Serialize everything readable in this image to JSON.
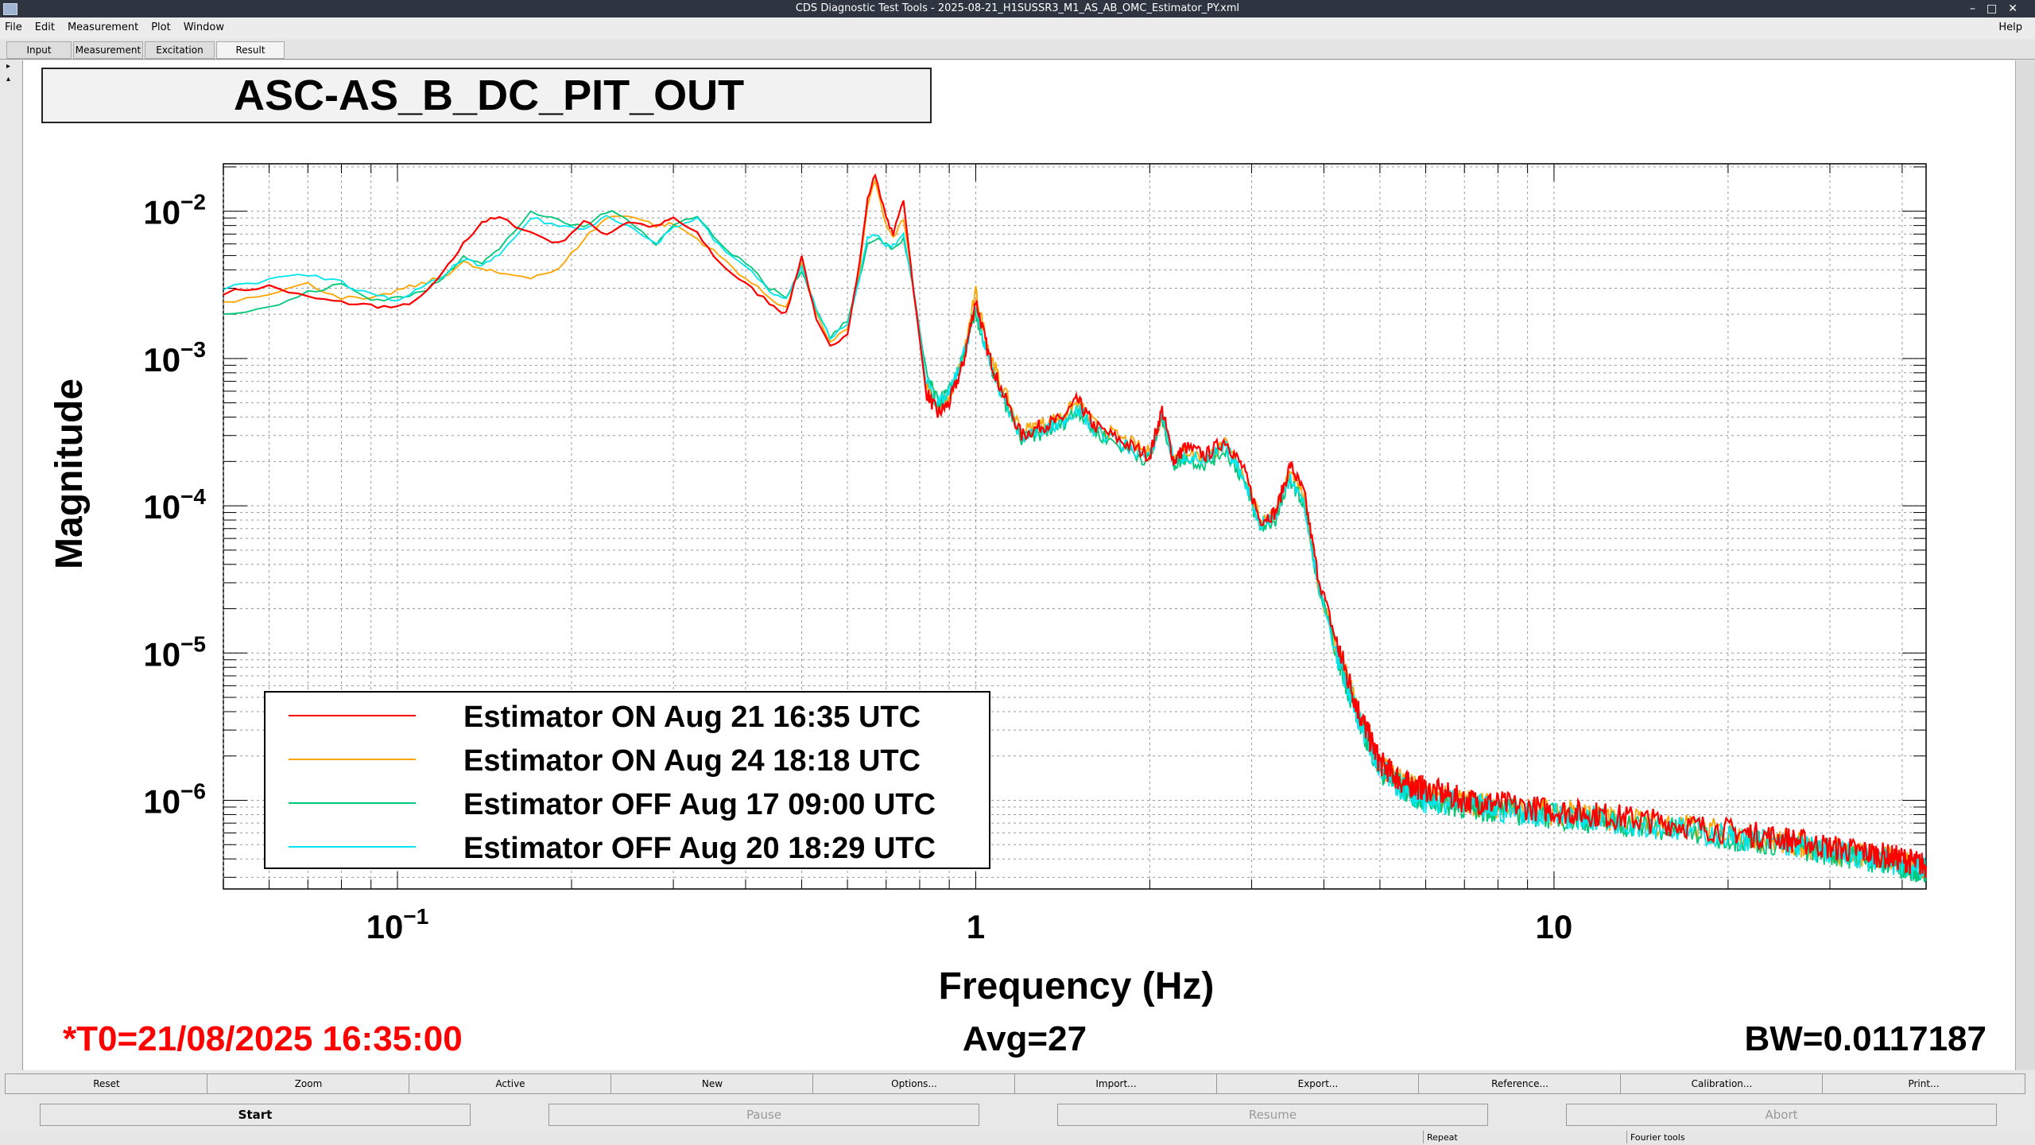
{
  "window": {
    "title": "CDS Diagnostic Test Tools - 2025-08-21_H1SUSSR3_M1_AS_AB_OMC_Estimator_PY.xml",
    "controls": [
      "–",
      "□",
      "✕"
    ]
  },
  "menu": {
    "items": [
      "File",
      "Edit",
      "Measurement",
      "Plot",
      "Window"
    ],
    "help": "Help"
  },
  "tabs": [
    "Input",
    "Measurement",
    "Excitation",
    "Result"
  ],
  "plot": {
    "channel_title": "ASC-AS_B_DC_PIT_OUT",
    "t0": "*T0=21/08/2025 16:35:00",
    "avg": "Avg=27",
    "bw": "BW=0.0117187"
  },
  "chart_data": {
    "type": "line",
    "xlabel": "Frequency (Hz)",
    "ylabel": "Magnitude",
    "x_scale": "log",
    "y_scale": "log",
    "xlim": [
      0.05,
      44
    ],
    "ylim": [
      2.5e-07,
      0.021
    ],
    "x_ticks": [
      {
        "value": 0.1,
        "label": "10",
        "exp": "−1"
      },
      {
        "value": 1,
        "label": "1",
        "exp": ""
      },
      {
        "value": 10,
        "label": "10",
        "exp": ""
      }
    ],
    "y_ticks": [
      {
        "value": 0.01,
        "label": "10",
        "exp": "−2"
      },
      {
        "value": 0.001,
        "label": "10",
        "exp": "−3"
      },
      {
        "value": 0.0001,
        "label": "10",
        "exp": "−4"
      },
      {
        "value": 1e-05,
        "label": "10",
        "exp": "−5"
      },
      {
        "value": 1e-06,
        "label": "10",
        "exp": "−6"
      }
    ],
    "grid": true,
    "legend_position": "bottom-left",
    "series": [
      {
        "name": "Estimator ON Aug 21 16:35 UTC",
        "color": "#ff0000",
        "x": [
          0.05,
          0.06,
          0.07,
          0.08,
          0.09,
          0.1,
          0.11,
          0.12,
          0.13,
          0.14,
          0.15,
          0.17,
          0.19,
          0.21,
          0.23,
          0.25,
          0.28,
          0.3,
          0.33,
          0.36,
          0.4,
          0.44,
          0.47,
          0.5,
          0.53,
          0.56,
          0.6,
          0.63,
          0.65,
          0.67,
          0.7,
          0.72,
          0.75,
          0.78,
          0.82,
          0.86,
          0.9,
          0.95,
          1.0,
          1.05,
          1.1,
          1.2,
          1.3,
          1.4,
          1.5,
          1.6,
          1.8,
          2.0,
          2.1,
          2.2,
          2.3,
          2.5,
          2.7,
          2.9,
          3.1,
          3.3,
          3.5,
          3.7,
          3.9,
          4.2,
          4.6,
          5.0,
          5.5,
          6,
          7,
          8,
          10,
          12,
          15,
          20,
          25,
          30,
          35,
          40,
          44
        ],
        "values": [
          0.0028,
          0.0031,
          0.0026,
          0.0024,
          0.0023,
          0.0022,
          0.0026,
          0.0038,
          0.006,
          0.0085,
          0.009,
          0.0072,
          0.006,
          0.0085,
          0.007,
          0.0085,
          0.0078,
          0.009,
          0.007,
          0.0045,
          0.0032,
          0.0024,
          0.002,
          0.005,
          0.0018,
          0.0012,
          0.0015,
          0.0045,
          0.012,
          0.018,
          0.009,
          0.007,
          0.012,
          0.003,
          0.0006,
          0.00042,
          0.0005,
          0.0009,
          0.0025,
          0.0011,
          0.00065,
          0.0003,
          0.00035,
          0.00038,
          0.00052,
          0.00035,
          0.00027,
          0.00022,
          0.00045,
          0.0002,
          0.00025,
          0.00022,
          0.00028,
          0.00018,
          8e-05,
          9e-05,
          0.00019,
          0.00012,
          3.5e-05,
          1.2e-05,
          4e-06,
          1.8e-06,
          1.3e-06,
          1.2e-06,
          1e-06,
          9.5e-07,
          8.5e-07,
          8e-07,
          7.2e-07,
          6.2e-07,
          5.5e-07,
          4.8e-07,
          4.4e-07,
          4e-07,
          3.6e-07
        ]
      },
      {
        "name": "Estimator ON Aug 24 18:18 UTC",
        "color": "#ffa500",
        "x": [
          0.05,
          0.06,
          0.07,
          0.08,
          0.09,
          0.1,
          0.11,
          0.12,
          0.13,
          0.14,
          0.15,
          0.17,
          0.19,
          0.21,
          0.23,
          0.25,
          0.28,
          0.3,
          0.33,
          0.36,
          0.4,
          0.44,
          0.47,
          0.5,
          0.53,
          0.56,
          0.6,
          0.63,
          0.65,
          0.67,
          0.7,
          0.72,
          0.75,
          0.78,
          0.82,
          0.86,
          0.9,
          0.95,
          1.0,
          1.05,
          1.1,
          1.2,
          1.3,
          1.4,
          1.5,
          1.6,
          1.8,
          2.0,
          2.1,
          2.2,
          2.3,
          2.5,
          2.7,
          2.9,
          3.1,
          3.3,
          3.5,
          3.7,
          3.9,
          4.2,
          4.6,
          5.0,
          5.5,
          6,
          7,
          8,
          10,
          12,
          15,
          20,
          25,
          30,
          35,
          40,
          44
        ],
        "values": [
          0.0024,
          0.0028,
          0.0032,
          0.0026,
          0.0025,
          0.0029,
          0.0032,
          0.0036,
          0.0045,
          0.004,
          0.0038,
          0.0036,
          0.004,
          0.0065,
          0.009,
          0.0095,
          0.008,
          0.0082,
          0.0065,
          0.005,
          0.0035,
          0.0026,
          0.0022,
          0.0045,
          0.002,
          0.0013,
          0.0016,
          0.004,
          0.011,
          0.016,
          0.008,
          0.0065,
          0.009,
          0.003,
          0.0007,
          0.00045,
          0.00055,
          0.001,
          0.0028,
          0.0012,
          0.0007,
          0.00032,
          0.00036,
          0.0004,
          0.0005,
          0.00036,
          0.00028,
          0.00023,
          0.0004,
          0.00021,
          0.00024,
          0.00021,
          0.00026,
          0.00017,
          8e-05,
          9e-05,
          0.00017,
          0.00011,
          3e-05,
          1.1e-05,
          3.8e-06,
          1.7e-06,
          1.3e-06,
          1.1e-06,
          9.8e-07,
          9e-07,
          8.2e-07,
          7.7e-07,
          7e-07,
          6e-07,
          5.2e-07,
          4.6e-07,
          4.2e-07,
          3.8e-07,
          3.5e-07
        ]
      },
      {
        "name": "Estimator OFF Aug 17 09:00 UTC",
        "color": "#00c878",
        "x": [
          0.05,
          0.06,
          0.07,
          0.08,
          0.09,
          0.1,
          0.11,
          0.12,
          0.13,
          0.14,
          0.15,
          0.17,
          0.19,
          0.21,
          0.23,
          0.25,
          0.28,
          0.3,
          0.33,
          0.36,
          0.4,
          0.44,
          0.47,
          0.5,
          0.53,
          0.56,
          0.6,
          0.63,
          0.65,
          0.67,
          0.7,
          0.72,
          0.75,
          0.78,
          0.82,
          0.86,
          0.9,
          0.95,
          1.0,
          1.05,
          1.1,
          1.2,
          1.3,
          1.4,
          1.5,
          1.6,
          1.8,
          2.0,
          2.1,
          2.2,
          2.3,
          2.5,
          2.7,
          2.9,
          3.1,
          3.3,
          3.5,
          3.7,
          3.9,
          4.2,
          4.6,
          5.0,
          5.5,
          6,
          7,
          8,
          10,
          12,
          15,
          20,
          25,
          30,
          35,
          40,
          44
        ],
        "values": [
          0.002,
          0.0022,
          0.0028,
          0.0032,
          0.0025,
          0.0026,
          0.0028,
          0.0035,
          0.005,
          0.0045,
          0.0055,
          0.01,
          0.0085,
          0.0078,
          0.01,
          0.009,
          0.006,
          0.008,
          0.0095,
          0.006,
          0.0045,
          0.003,
          0.0026,
          0.004,
          0.0022,
          0.0014,
          0.0018,
          0.0035,
          0.006,
          0.0065,
          0.006,
          0.0055,
          0.0065,
          0.003,
          0.0008,
          0.0005,
          0.0006,
          0.001,
          0.002,
          0.001,
          0.0006,
          0.00028,
          0.00031,
          0.00035,
          0.00045,
          0.00032,
          0.00025,
          0.0002,
          0.0004,
          0.00019,
          0.00021,
          0.00019,
          0.00024,
          0.00015,
          7e-05,
          8e-05,
          0.00015,
          0.0001,
          3e-05,
          1e-05,
          3.5e-06,
          1.6e-06,
          1.2e-06,
          1e-06,
          9.2e-07,
          8.5e-07,
          7.8e-07,
          7.2e-07,
          6.5e-07,
          5.6e-07,
          5e-07,
          4.4e-07,
          4e-07,
          3.6e-07,
          3.3e-07
        ]
      },
      {
        "name": "Estimator OFF Aug 20 18:29 UTC",
        "color": "#00e5ee",
        "x": [
          0.05,
          0.06,
          0.07,
          0.08,
          0.09,
          0.1,
          0.11,
          0.12,
          0.13,
          0.14,
          0.15,
          0.17,
          0.19,
          0.21,
          0.23,
          0.25,
          0.28,
          0.3,
          0.33,
          0.36,
          0.4,
          0.44,
          0.47,
          0.5,
          0.53,
          0.56,
          0.6,
          0.63,
          0.65,
          0.67,
          0.7,
          0.72,
          0.75,
          0.78,
          0.82,
          0.86,
          0.9,
          0.95,
          1.0,
          1.05,
          1.1,
          1.2,
          1.3,
          1.4,
          1.5,
          1.6,
          1.8,
          2.0,
          2.1,
          2.2,
          2.3,
          2.5,
          2.7,
          2.9,
          3.1,
          3.3,
          3.5,
          3.7,
          3.9,
          4.2,
          4.6,
          5.0,
          5.5,
          6,
          7,
          8,
          10,
          12,
          15,
          20,
          25,
          30,
          35,
          40,
          44
        ],
        "values": [
          0.003,
          0.0034,
          0.0037,
          0.0033,
          0.0027,
          0.0025,
          0.003,
          0.0036,
          0.0048,
          0.0042,
          0.005,
          0.009,
          0.008,
          0.0075,
          0.0095,
          0.008,
          0.006,
          0.0078,
          0.009,
          0.0058,
          0.0042,
          0.0029,
          0.0025,
          0.0042,
          0.0021,
          0.0014,
          0.0017,
          0.0036,
          0.0065,
          0.007,
          0.0058,
          0.0058,
          0.007,
          0.003,
          0.00075,
          0.00048,
          0.00058,
          0.001,
          0.0022,
          0.001,
          0.00062,
          0.00029,
          0.00032,
          0.00036,
          0.00046,
          0.00033,
          0.00026,
          0.00021,
          0.00042,
          0.0002,
          0.00022,
          0.0002,
          0.00025,
          0.00016,
          7.5e-05,
          8.5e-05,
          0.00016,
          0.0001,
          3e-05,
          1e-05,
          3.6e-06,
          1.6e-06,
          1.2e-06,
          1e-06,
          9.4e-07,
          8.6e-07,
          8e-07,
          7.4e-07,
          6.7e-07,
          5.7e-07,
          5.1e-07,
          4.5e-07,
          4.1e-07,
          3.7e-07,
          3.4e-07
        ]
      }
    ]
  },
  "buttons_row1": [
    "Reset",
    "Zoom",
    "Active",
    "New",
    "Options...",
    "Import...",
    "Export...",
    "Reference...",
    "Calibration...",
    "Print..."
  ],
  "buttons_row2": [
    {
      "label": "Start",
      "enabled": true
    },
    {
      "label": "Pause",
      "enabled": false
    },
    {
      "label": "Resume",
      "enabled": false
    },
    {
      "label": "Abort",
      "enabled": false
    }
  ],
  "status": {
    "repeat": "Repeat",
    "fourier": "Fourier tools"
  }
}
